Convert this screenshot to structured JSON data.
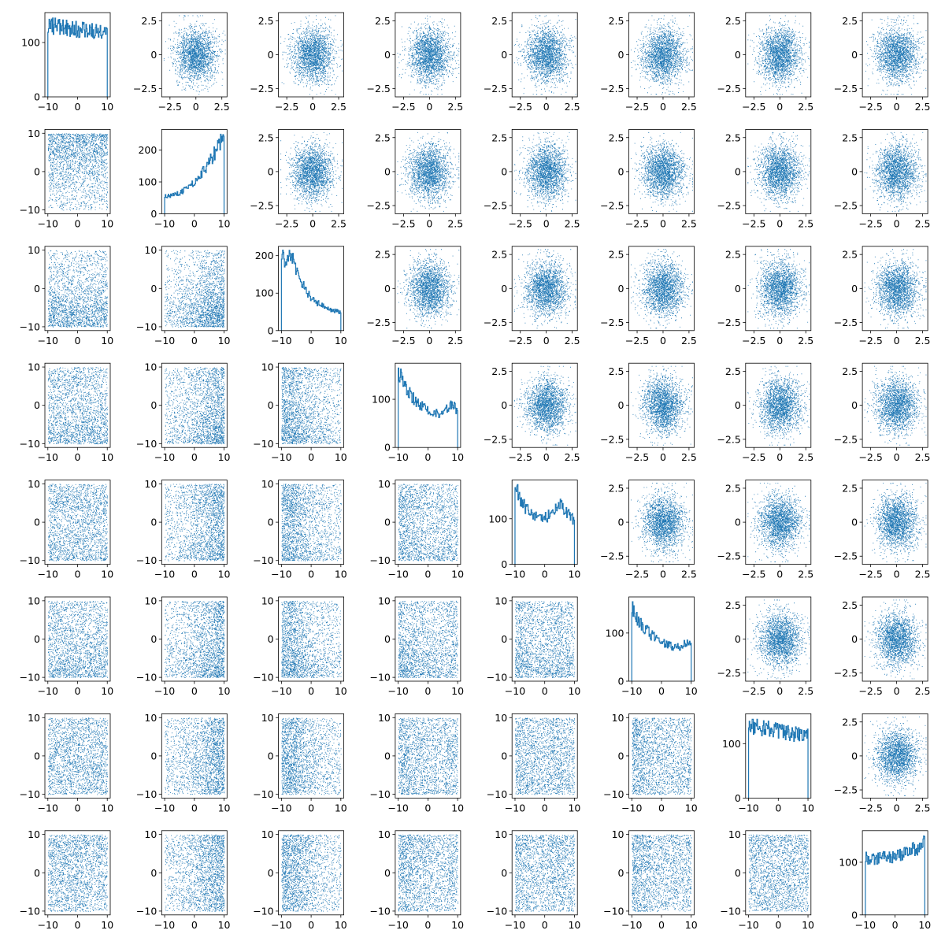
{
  "chart_data": {
    "type": "pairplot",
    "grid_size": 8,
    "color": "#1f77b4",
    "points_per_variable": 10000,
    "grid": false,
    "lower_panels": {
      "type": "scatter",
      "x_variable": "column index (uniform in [-10, 10])",
      "y_variable": "row index (uniform in [-10, 10])",
      "xlim": [
        -11,
        11
      ],
      "ylim": [
        -11,
        11
      ],
      "xticks": [
        -10,
        0,
        10
      ],
      "yticks": [
        -10,
        0,
        10
      ]
    },
    "upper_panels": {
      "type": "scatter",
      "distribution": "standard normal, correlation 0",
      "xlim": [
        -3.3,
        3.0
      ],
      "ylim": [
        -3.1,
        3.1
      ],
      "xticks": [
        -2.5,
        0.0,
        2.5
      ],
      "yticks": [
        -2.5,
        0.0,
        2.5
      ]
    },
    "diagonal_panels": {
      "type": "histogram (step)",
      "xlim": [
        -11,
        11
      ],
      "xticks": [
        -10,
        0,
        10
      ],
      "bins": 100,
      "histograms": [
        {
          "shape": "flat",
          "peak": 145,
          "yticks": [
            0,
            100
          ],
          "ylim": [
            0,
            155
          ]
        },
        {
          "shape": "rising",
          "peak": 250,
          "yticks": [
            0,
            100,
            200
          ],
          "ylim": [
            0,
            265
          ]
        },
        {
          "shape": "left-skewed peak then decay",
          "peak": 215,
          "yticks": [
            0,
            100,
            200
          ],
          "ylim": [
            0,
            225
          ]
        },
        {
          "shape": "peak left, decay, bump right",
          "peak": 165,
          "yticks": [
            0,
            100
          ],
          "ylim": [
            0,
            175
          ]
        },
        {
          "shape": "u-shaped with left peak",
          "peak": 175,
          "yticks": [
            0,
            100
          ],
          "ylim": [
            0,
            185
          ]
        },
        {
          "shape": "decaying with right bump",
          "peak": 165,
          "yticks": [
            0,
            100
          ],
          "ylim": [
            0,
            175
          ]
        },
        {
          "shape": "flat",
          "peak": 145,
          "yticks": [
            0,
            100
          ],
          "ylim": [
            0,
            155
          ]
        },
        {
          "shape": "flat rising slightly",
          "peak": 150,
          "yticks": [
            0,
            100
          ],
          "ylim": [
            0,
            160
          ]
        }
      ]
    }
  }
}
